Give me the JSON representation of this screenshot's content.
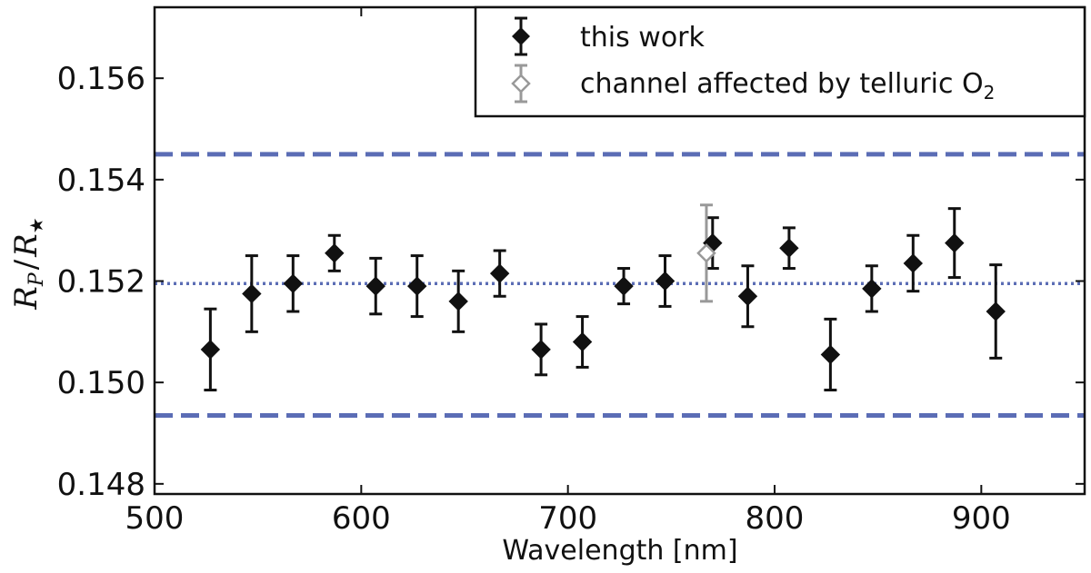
{
  "chart_data": {
    "type": "scatter",
    "title": "",
    "xlabel": "Wavelength [nm]",
    "ylabel": {
      "main": "R",
      "sub_p": "P",
      "sep": "/",
      "main2": "R",
      "sub_star": "★"
    },
    "xlim": [
      500,
      950
    ],
    "ylim": [
      0.1478,
      0.1574
    ],
    "xticks": [
      500,
      600,
      700,
      800,
      900
    ],
    "xtick_labels": [
      "500",
      "600",
      "700",
      "800",
      "900"
    ],
    "yticks": [
      0.148,
      0.15,
      0.152,
      0.154,
      0.156
    ],
    "ytick_labels": [
      "0.148",
      "0.150",
      "0.152",
      "0.154",
      "0.156"
    ],
    "reference_lines": [
      {
        "name": "upper-bound",
        "y": 0.1545,
        "style": "dashed",
        "color": "#5b6db5"
      },
      {
        "name": "mean",
        "y": 0.15195,
        "style": "dotted",
        "color": "#5b6db5"
      },
      {
        "name": "lower-bound",
        "y": 0.14935,
        "style": "dashed",
        "color": "#5b6db5"
      }
    ],
    "series": [
      {
        "name": "this work",
        "marker": "filled-diamond",
        "color": "#111111",
        "points": [
          {
            "x": 527,
            "y": 0.15065,
            "err": 0.0008
          },
          {
            "x": 547,
            "y": 0.15175,
            "err": 0.00075
          },
          {
            "x": 567,
            "y": 0.15195,
            "err": 0.00055
          },
          {
            "x": 587,
            "y": 0.15255,
            "err": 0.00035
          },
          {
            "x": 607,
            "y": 0.1519,
            "err": 0.00055
          },
          {
            "x": 627,
            "y": 0.1519,
            "err": 0.0006
          },
          {
            "x": 647,
            "y": 0.1516,
            "err": 0.0006
          },
          {
            "x": 667,
            "y": 0.15215,
            "err": 0.00045
          },
          {
            "x": 687,
            "y": 0.15065,
            "err": 0.0005
          },
          {
            "x": 707,
            "y": 0.1508,
            "err": 0.0005
          },
          {
            "x": 727,
            "y": 0.1519,
            "err": 0.00035
          },
          {
            "x": 747,
            "y": 0.152,
            "err": 0.0005
          },
          {
            "x": 770,
            "y": 0.15275,
            "err": 0.0005
          },
          {
            "x": 787,
            "y": 0.1517,
            "err": 0.0006
          },
          {
            "x": 807,
            "y": 0.15265,
            "err": 0.0004
          },
          {
            "x": 827,
            "y": 0.15055,
            "err": 0.0007
          },
          {
            "x": 847,
            "y": 0.15185,
            "err": 0.00045
          },
          {
            "x": 867,
            "y": 0.15235,
            "err": 0.00055
          },
          {
            "x": 887,
            "y": 0.15275,
            "err": 0.00068
          },
          {
            "x": 907,
            "y": 0.1514,
            "err": 0.00092
          }
        ]
      },
      {
        "name": "channel affected by telluric O",
        "name_sub": "2",
        "marker": "open-diamond",
        "color": "#999999",
        "points": [
          {
            "x": 767,
            "y": 0.15255,
            "err": 0.00095
          }
        ]
      }
    ],
    "legend": {
      "position": "top-right"
    }
  }
}
